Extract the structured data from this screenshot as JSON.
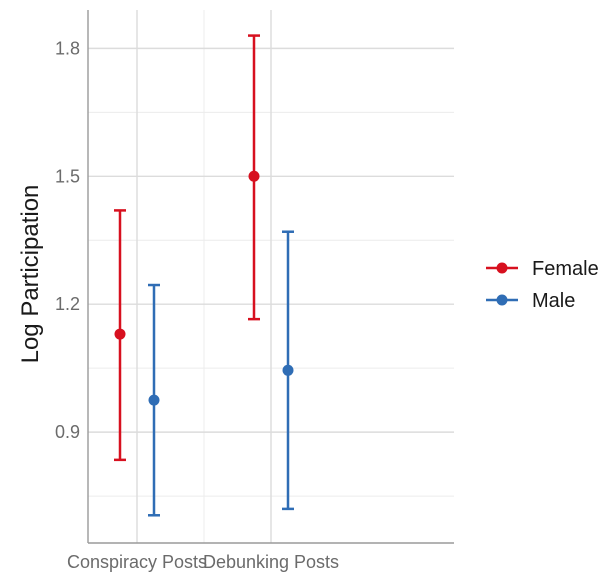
{
  "chart_data": {
    "type": "scatter",
    "subtype": "point-errorbar",
    "title": "",
    "xlabel": "",
    "ylabel": "Log Participation",
    "categories": [
      "Conspiracy Posts",
      "Debunking Posts"
    ],
    "ylim": [
      0.64,
      1.89
    ],
    "yticks": [
      "0.9",
      "1.2",
      "1.5",
      "1.8"
    ],
    "grid": true,
    "legend_position": "right",
    "series": [
      {
        "name": "Female",
        "color": "#d7101f",
        "values": [
          1.13,
          1.5
        ],
        "lower": [
          0.835,
          1.165
        ],
        "upper": [
          1.42,
          1.83
        ]
      },
      {
        "name": "Male",
        "color": "#2f6db5",
        "values": [
          0.975,
          1.045
        ],
        "lower": [
          0.705,
          0.72
        ],
        "upper": [
          1.245,
          1.37
        ]
      }
    ]
  }
}
